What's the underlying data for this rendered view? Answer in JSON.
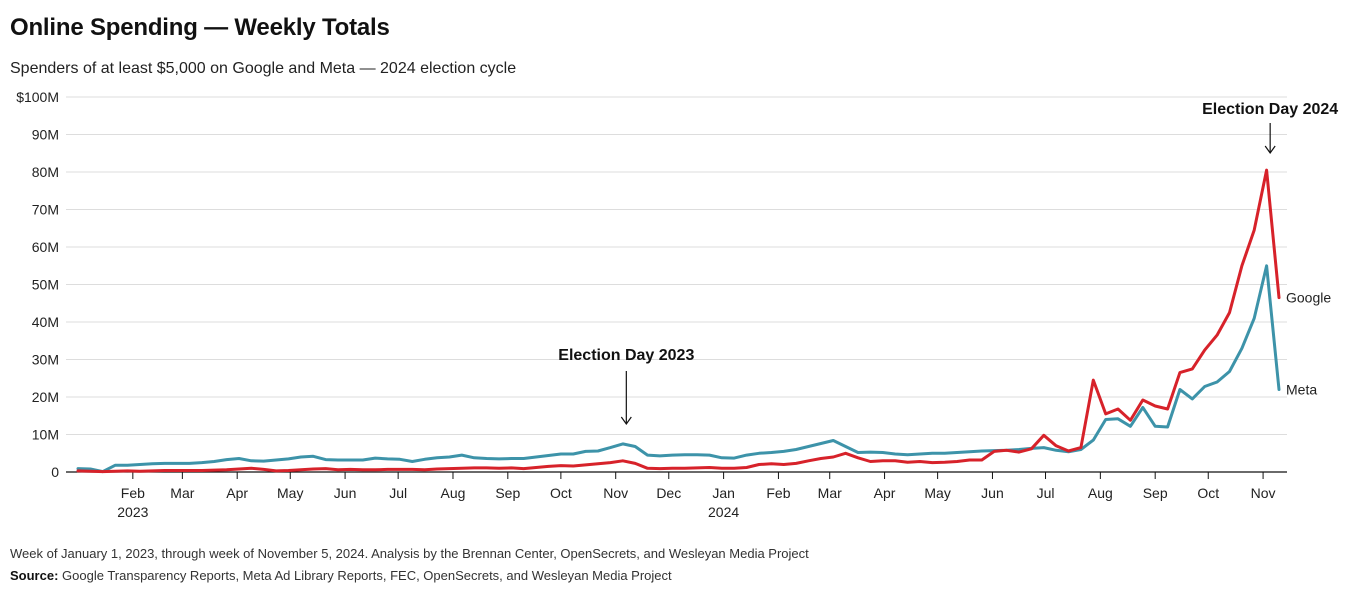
{
  "header": {
    "title": "Online Spending — Weekly Totals",
    "subtitle": "Spenders of at least $5,000 on Google and Meta — 2024 election cycle"
  },
  "footer": {
    "note": "Week of January 1, 2023, through week of November 5, 2024. Analysis by the Brennan Center, OpenSecrets, and Wesleyan Media Project",
    "source_label": "Source:",
    "source_text": "Google Transparency Reports, Meta Ad Library Reports, FEC, OpenSecrets, and Wesleyan Media Project"
  },
  "colors": {
    "google": "#d7222a",
    "meta": "#3d93a9",
    "grid": "#dddddd",
    "axis": "#111111"
  },
  "chart_data": {
    "type": "line",
    "title": "",
    "xlabel": "",
    "ylabel": "",
    "ylim": [
      0,
      100
    ],
    "y_unit": "millions USD",
    "y_ticks": [
      0,
      10,
      20,
      30,
      40,
      50,
      60,
      70,
      80,
      90,
      100
    ],
    "y_tick_labels": [
      "0",
      "10M",
      "20M",
      "30M",
      "40M",
      "50M",
      "60M",
      "70M",
      "80M",
      "90M",
      "$100M"
    ],
    "grid": true,
    "xlim": [
      "2023-01-01",
      "2024-11-10"
    ],
    "x_ticks": [
      {
        "date": "2023-02-01",
        "label": "Feb",
        "sublabel": "2023"
      },
      {
        "date": "2023-03-01",
        "label": "Mar"
      },
      {
        "date": "2023-04-01",
        "label": "Apr"
      },
      {
        "date": "2023-05-01",
        "label": "May"
      },
      {
        "date": "2023-06-01",
        "label": "Jun"
      },
      {
        "date": "2023-07-01",
        "label": "Jul"
      },
      {
        "date": "2023-08-01",
        "label": "Aug"
      },
      {
        "date": "2023-09-01",
        "label": "Sep"
      },
      {
        "date": "2023-10-01",
        "label": "Oct"
      },
      {
        "date": "2023-11-01",
        "label": "Nov"
      },
      {
        "date": "2023-12-01",
        "label": "Dec"
      },
      {
        "date": "2024-01-01",
        "label": "Jan",
        "sublabel": "2024"
      },
      {
        "date": "2024-02-01",
        "label": "Feb"
      },
      {
        "date": "2024-03-01",
        "label": "Mar"
      },
      {
        "date": "2024-04-01",
        "label": "Apr"
      },
      {
        "date": "2024-05-01",
        "label": "May"
      },
      {
        "date": "2024-06-01",
        "label": "Jun"
      },
      {
        "date": "2024-07-01",
        "label": "Jul"
      },
      {
        "date": "2024-08-01",
        "label": "Aug"
      },
      {
        "date": "2024-09-01",
        "label": "Sep"
      },
      {
        "date": "2024-10-01",
        "label": "Oct"
      },
      {
        "date": "2024-11-01",
        "label": "Nov"
      }
    ],
    "x": [
      "2023-01-01",
      "2023-01-08",
      "2023-01-15",
      "2023-01-22",
      "2023-01-29",
      "2023-02-05",
      "2023-02-12",
      "2023-02-19",
      "2023-02-26",
      "2023-03-05",
      "2023-03-12",
      "2023-03-19",
      "2023-03-26",
      "2023-04-02",
      "2023-04-09",
      "2023-04-16",
      "2023-04-23",
      "2023-04-30",
      "2023-05-07",
      "2023-05-14",
      "2023-05-21",
      "2023-05-28",
      "2023-06-04",
      "2023-06-11",
      "2023-06-18",
      "2023-06-25",
      "2023-07-02",
      "2023-07-09",
      "2023-07-16",
      "2023-07-23",
      "2023-07-30",
      "2023-08-06",
      "2023-08-13",
      "2023-08-20",
      "2023-08-27",
      "2023-09-03",
      "2023-09-10",
      "2023-09-17",
      "2023-09-24",
      "2023-10-01",
      "2023-10-08",
      "2023-10-15",
      "2023-10-22",
      "2023-10-29",
      "2023-11-05",
      "2023-11-12",
      "2023-11-19",
      "2023-11-26",
      "2023-12-03",
      "2023-12-10",
      "2023-12-17",
      "2023-12-24",
      "2023-12-31",
      "2024-01-07",
      "2024-01-14",
      "2024-01-21",
      "2024-01-28",
      "2024-02-04",
      "2024-02-11",
      "2024-02-18",
      "2024-02-25",
      "2024-03-03",
      "2024-03-10",
      "2024-03-17",
      "2024-03-24",
      "2024-03-31",
      "2024-04-07",
      "2024-04-14",
      "2024-04-21",
      "2024-04-28",
      "2024-05-05",
      "2024-05-12",
      "2024-05-19",
      "2024-05-26",
      "2024-06-02",
      "2024-06-09",
      "2024-06-16",
      "2024-06-23",
      "2024-06-30",
      "2024-07-07",
      "2024-07-14",
      "2024-07-21",
      "2024-07-28",
      "2024-08-04",
      "2024-08-11",
      "2024-08-18",
      "2024-08-25",
      "2024-09-01",
      "2024-09-08",
      "2024-09-15",
      "2024-09-22",
      "2024-09-29",
      "2024-10-06",
      "2024-10-13",
      "2024-10-20",
      "2024-10-27",
      "2024-11-03",
      "2024-11-10"
    ],
    "series": [
      {
        "name": "Google",
        "color": "#d7222a",
        "values": [
          0.3,
          0.2,
          0.1,
          0.2,
          0.3,
          0.2,
          0.3,
          0.4,
          0.4,
          0.4,
          0.4,
          0.5,
          0.6,
          0.8,
          1.0,
          0.7,
          0.3,
          0.4,
          0.6,
          0.8,
          0.9,
          0.6,
          0.7,
          0.6,
          0.6,
          0.7,
          0.7,
          0.7,
          0.6,
          0.8,
          0.9,
          1.0,
          1.1,
          1.1,
          1.0,
          1.1,
          0.9,
          1.2,
          1.5,
          1.7,
          1.6,
          1.9,
          2.2,
          2.5,
          3.0,
          2.3,
          1.0,
          0.9,
          1.0,
          1.0,
          1.1,
          1.2,
          1.0,
          1.0,
          1.2,
          2.0,
          2.2,
          2.0,
          2.3,
          3.0,
          3.6,
          4.0,
          5.0,
          3.8,
          2.8,
          3.0,
          3.0,
          2.6,
          2.8,
          2.5,
          2.6,
          2.8,
          3.2,
          3.2,
          5.5,
          5.8,
          5.3,
          6.2,
          9.8,
          7.0,
          5.6,
          6.5,
          24.5,
          15.5,
          16.8,
          13.8,
          19.2,
          17.6,
          16.8,
          26.5,
          27.5,
          32.5,
          36.5,
          42.5,
          55.0,
          64.5,
          80.5,
          46.5
        ]
      },
      {
        "name": "Meta",
        "color": "#3d93a9",
        "values": [
          0.9,
          0.8,
          0.1,
          1.8,
          1.8,
          2.0,
          2.2,
          2.3,
          2.3,
          2.3,
          2.5,
          2.8,
          3.3,
          3.6,
          3.0,
          2.9,
          3.2,
          3.5,
          4.0,
          4.2,
          3.3,
          3.2,
          3.2,
          3.2,
          3.7,
          3.5,
          3.4,
          2.8,
          3.4,
          3.8,
          4.0,
          4.5,
          3.8,
          3.6,
          3.5,
          3.6,
          3.6,
          4.0,
          4.4,
          4.8,
          4.8,
          5.5,
          5.6,
          6.5,
          7.5,
          6.8,
          4.5,
          4.3,
          4.5,
          4.6,
          4.6,
          4.5,
          3.8,
          3.7,
          4.5,
          5.0,
          5.2,
          5.5,
          6.0,
          6.8,
          7.6,
          8.4,
          6.8,
          5.2,
          5.3,
          5.2,
          4.8,
          4.6,
          4.8,
          5.0,
          5.0,
          5.2,
          5.4,
          5.6,
          5.7,
          5.8,
          6.0,
          6.3,
          6.5,
          5.8,
          5.4,
          6.0,
          8.5,
          14.0,
          14.2,
          12.2,
          17.2,
          12.2,
          12.0,
          22.0,
          19.5,
          22.8,
          24.0,
          26.8,
          33.0,
          41.0,
          55.0,
          22.0
        ]
      }
    ],
    "annotations": [
      {
        "text": "Election Day 2023",
        "date": "2023-11-07"
      },
      {
        "text": "Election Day 2024",
        "date": "2024-11-05"
      }
    ]
  }
}
